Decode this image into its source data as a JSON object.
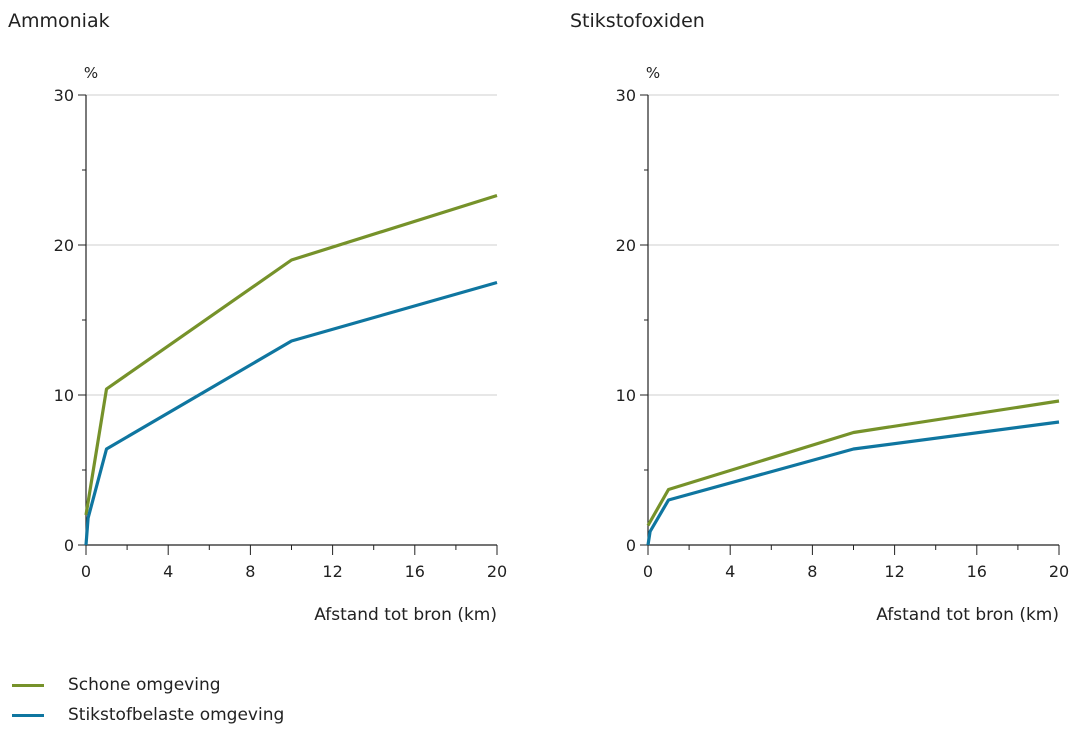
{
  "legend": [
    {
      "label": "Schone omgeving",
      "color": "#76922a"
    },
    {
      "label": "Stikstofbelaste omgeving",
      "color": "#0f76a0"
    }
  ],
  "chart_data": [
    {
      "type": "line",
      "title": "Ammoniak",
      "ylabel": "%",
      "xlabel": "Afstand tot bron (km)",
      "xlim": [
        0,
        20
      ],
      "ylim": [
        0,
        30
      ],
      "xticks": [
        0,
        4,
        8,
        12,
        16,
        20
      ],
      "yticks": [
        0,
        10,
        20,
        30
      ],
      "grid": true,
      "series": [
        {
          "name": "Schone omgeving",
          "color": "#76922a",
          "x": [
            0,
            1,
            10,
            20
          ],
          "y": [
            2.0,
            10.4,
            19.0,
            23.3
          ]
        },
        {
          "name": "Stikstofbelaste omgeving",
          "color": "#0f76a0",
          "x": [
            0,
            0.1,
            1,
            10,
            20
          ],
          "y": [
            0,
            1.8,
            6.4,
            13.6,
            17.5
          ]
        }
      ]
    },
    {
      "type": "line",
      "title": "Stikstofoxiden",
      "ylabel": "%",
      "xlabel": "Afstand tot bron (km)",
      "xlim": [
        0,
        20
      ],
      "ylim": [
        0,
        30
      ],
      "xticks": [
        0,
        4,
        8,
        12,
        16,
        20
      ],
      "yticks": [
        0,
        10,
        20,
        30
      ],
      "grid": true,
      "series": [
        {
          "name": "Schone omgeving",
          "color": "#76922a",
          "x": [
            0,
            1,
            10,
            20
          ],
          "y": [
            1.3,
            3.7,
            7.5,
            9.6
          ]
        },
        {
          "name": "Stikstofbelaste omgeving",
          "color": "#0f76a0",
          "x": [
            0,
            0.1,
            1,
            10,
            20
          ],
          "y": [
            0,
            0.9,
            3.0,
            6.4,
            8.2
          ]
        }
      ]
    }
  ]
}
